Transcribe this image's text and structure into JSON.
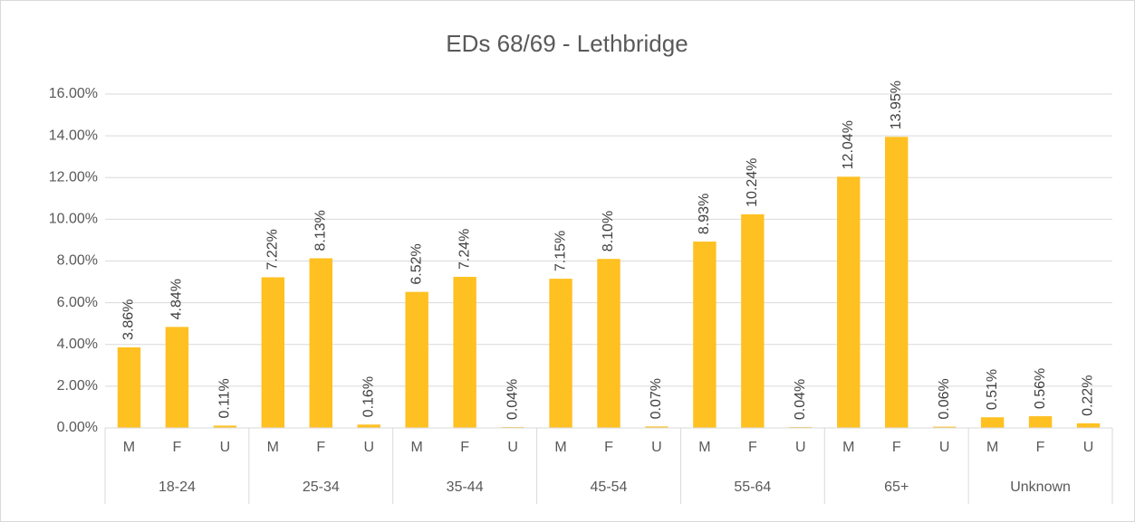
{
  "chart_data": {
    "type": "bar",
    "title": "EDs 68/69 - Lethbridge",
    "categories": [
      "M",
      "F",
      "U",
      "M",
      "F",
      "U",
      "M",
      "F",
      "U",
      "M",
      "F",
      "U",
      "M",
      "F",
      "U",
      "M",
      "F",
      "U",
      "M",
      "F",
      "U"
    ],
    "category_groups": [
      "18-24",
      "25-34",
      "35-44",
      "45-54",
      "55-64",
      "65+",
      "Unknown"
    ],
    "values": [
      3.86,
      4.84,
      0.11,
      7.22,
      8.13,
      0.16,
      6.52,
      7.24,
      0.04,
      7.15,
      8.1,
      0.07,
      8.93,
      10.24,
      0.04,
      12.04,
      13.95,
      0.06,
      0.51,
      0.56,
      0.22
    ],
    "value_labels": [
      "3.86%",
      "4.84%",
      "0.11%",
      "7.22%",
      "8.13%",
      "0.16%",
      "6.52%",
      "7.24%",
      "0.04%",
      "7.15%",
      "8.10%",
      "0.07%",
      "8.93%",
      "10.24%",
      "0.04%",
      "12.04%",
      "13.95%",
      "0.06%",
      "0.51%",
      "0.56%",
      "0.22%"
    ],
    "color": "#ffc021",
    "ylim": [
      0,
      16
    ],
    "yticks": [
      {
        "value": 0,
        "label": "0.00%"
      },
      {
        "value": 2,
        "label": "2.00%"
      },
      {
        "value": 4,
        "label": "4.00%"
      },
      {
        "value": 6,
        "label": "6.00%"
      },
      {
        "value": 8,
        "label": "8.00%"
      },
      {
        "value": 10,
        "label": "10.00%"
      },
      {
        "value": 12,
        "label": "12.00%"
      },
      {
        "value": 14,
        "label": "14.00%"
      },
      {
        "value": 16,
        "label": "16.00%"
      }
    ],
    "grid": true
  }
}
